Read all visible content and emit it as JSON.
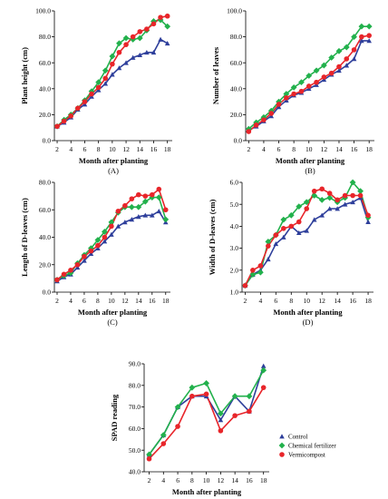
{
  "colors": {
    "control": "#2e3f9b",
    "chemical": "#22b14c",
    "vermicompost": "#e8252a"
  },
  "legend": {
    "items": [
      {
        "key": "control",
        "label": "Control",
        "marker": "triangle"
      },
      {
        "key": "chemical",
        "label": "Chemical fertilizer",
        "marker": "diamond"
      },
      {
        "key": "vermicompost",
        "label": "Vermicompost",
        "marker": "circle"
      }
    ]
  },
  "chart_data": [
    {
      "id": "A",
      "type": "line",
      "panel_label": "(A)",
      "xlabel": "Month after planting",
      "ylabel": "Plant height (cm)",
      "x": [
        2,
        3,
        4,
        5,
        6,
        7,
        8,
        9,
        10,
        11,
        12,
        13,
        14,
        15,
        16,
        17,
        18
      ],
      "xticks": [
        "2",
        "4",
        "6",
        "8",
        "10",
        "12",
        "14",
        "16",
        "18"
      ],
      "ylim": [
        0,
        100
      ],
      "yticks": [
        "0.0",
        "20.0",
        "40.0",
        "60.0",
        "80.0",
        "100.0"
      ],
      "series": [
        {
          "key": "control",
          "name": "Control",
          "values": [
            11,
            14,
            18,
            24,
            28,
            34,
            39,
            44,
            51,
            56,
            60,
            64,
            66,
            68,
            68,
            78,
            75
          ]
        },
        {
          "key": "chemical",
          "name": "Chemical fertilizer",
          "values": [
            11,
            16,
            20,
            25,
            31,
            38,
            45,
            54,
            65,
            75,
            79,
            78,
            79,
            85,
            92,
            93,
            88
          ]
        },
        {
          "key": "vermicompost",
          "name": "Vermicompost",
          "values": [
            11,
            15,
            19,
            25,
            30,
            36,
            41,
            48,
            59,
            68,
            74,
            80,
            84,
            86,
            90,
            95,
            96
          ]
        }
      ]
    },
    {
      "id": "B",
      "type": "line",
      "panel_label": "(B)",
      "xlabel": "Month after planting",
      "ylabel": "Number of leaves",
      "x": [
        2,
        3,
        4,
        5,
        6,
        7,
        8,
        9,
        10,
        11,
        12,
        13,
        14,
        15,
        16,
        17,
        18
      ],
      "xticks": [
        "2",
        "4",
        "6",
        "8",
        "10",
        "12",
        "14",
        "16",
        "18"
      ],
      "ylim": [
        0,
        100
      ],
      "yticks": [
        "0.0",
        "20.0",
        "40.0",
        "60.0",
        "80.0",
        "100.0"
      ],
      "series": [
        {
          "key": "control",
          "name": "Control",
          "values": [
            8,
            11,
            15,
            19,
            26,
            31,
            35,
            37,
            40,
            43,
            47,
            51,
            54,
            58,
            63,
            77,
            77
          ]
        },
        {
          "key": "chemical",
          "name": "Chemical fertilizer",
          "values": [
            9,
            14,
            18,
            23,
            30,
            36,
            41,
            45,
            50,
            54,
            58,
            64,
            69,
            72,
            80,
            88,
            88
          ]
        },
        {
          "key": "vermicompost",
          "name": "Vermicompost",
          "values": [
            7,
            12,
            16,
            21,
            28,
            33,
            36,
            38,
            42,
            45,
            49,
            52,
            57,
            63,
            70,
            80,
            81
          ]
        }
      ]
    },
    {
      "id": "C",
      "type": "line",
      "panel_label": "(C)",
      "xlabel": "Month after planting",
      "ylabel": "Length of D-leaves (cm)",
      "x": [
        2,
        3,
        4,
        5,
        6,
        7,
        8,
        9,
        10,
        11,
        12,
        13,
        14,
        15,
        16,
        17,
        18
      ],
      "xticks": [
        "2",
        "4",
        "6",
        "8",
        "10",
        "12",
        "14",
        "16",
        "18"
      ],
      "ylim": [
        0,
        80
      ],
      "yticks": [
        "0.0",
        "20.0",
        "40.0",
        "60.0",
        "80.0"
      ],
      "series": [
        {
          "key": "control",
          "name": "Control",
          "values": [
            8,
            11,
            13,
            18,
            23,
            28,
            32,
            37,
            42,
            48,
            51,
            53,
            55,
            56,
            56,
            59,
            51
          ]
        },
        {
          "key": "chemical",
          "name": "Chemical fertilizer",
          "values": [
            9,
            12,
            14,
            21,
            27,
            32,
            38,
            44,
            51,
            58,
            62,
            62,
            62,
            66,
            69,
            69,
            53
          ]
        },
        {
          "key": "vermicompost",
          "name": "Vermicompost",
          "values": [
            9,
            13,
            16,
            20,
            26,
            30,
            34,
            40,
            48,
            59,
            63,
            68,
            71,
            70,
            71,
            75,
            60
          ]
        }
      ]
    },
    {
      "id": "D",
      "type": "line",
      "panel_label": "(D)",
      "xlabel": "Month after planting",
      "ylabel": "Width of D-leaves (cm)",
      "x": [
        2,
        3,
        4,
        5,
        6,
        7,
        8,
        9,
        10,
        11,
        12,
        13,
        14,
        15,
        16,
        17,
        18
      ],
      "xticks": [
        "2",
        "4",
        "6",
        "8",
        "10",
        "12",
        "14",
        "16",
        "18"
      ],
      "ylim": [
        1.0,
        6.0
      ],
      "yticks": [
        "1.0",
        "2.0",
        "3.0",
        "4.0",
        "5.0",
        "6.0"
      ],
      "series": [
        {
          "key": "control",
          "name": "Control",
          "values": [
            1.3,
            1.8,
            2.0,
            2.5,
            3.2,
            3.5,
            4.0,
            3.7,
            3.8,
            4.3,
            4.5,
            4.8,
            4.8,
            5.0,
            5.1,
            5.3,
            4.2
          ]
        },
        {
          "key": "chemical",
          "name": "Chemical fertilizer",
          "values": [
            1.3,
            1.8,
            1.9,
            3.3,
            3.6,
            4.3,
            4.5,
            4.9,
            5.1,
            5.4,
            5.2,
            5.3,
            5.1,
            5.3,
            6.0,
            5.6,
            4.4
          ]
        },
        {
          "key": "vermicompost",
          "name": "Vermicompost",
          "values": [
            1.3,
            2.0,
            2.2,
            3.1,
            3.6,
            3.9,
            4.0,
            4.2,
            4.8,
            5.6,
            5.7,
            5.5,
            5.2,
            5.4,
            5.4,
            5.4,
            4.5
          ]
        }
      ]
    },
    {
      "id": "E",
      "type": "line",
      "panel_label": "(E)",
      "xlabel": "Month after planting",
      "ylabel": "SPAD reading",
      "x": [
        2,
        4,
        6,
        8,
        10,
        12,
        14,
        16,
        18
      ],
      "xticks": [
        "2",
        "4",
        "6",
        "8",
        "10",
        "12",
        "14",
        "16",
        "18"
      ],
      "ylim": [
        40,
        90
      ],
      "yticks": [
        "40.0",
        "50.0",
        "60.0",
        "70.0",
        "80.0",
        "90.0"
      ],
      "series": [
        {
          "key": "control",
          "name": "Control",
          "values": [
            48,
            57,
            70,
            75,
            75,
            64,
            75,
            68,
            89
          ]
        },
        {
          "key": "chemical",
          "name": "Chemical fertilizer",
          "values": [
            48,
            57,
            70,
            79,
            81,
            67,
            75,
            75,
            87
          ]
        },
        {
          "key": "vermicompost",
          "name": "Vermicompost",
          "values": [
            46,
            53,
            61,
            75,
            76,
            59,
            66,
            68,
            79
          ]
        }
      ]
    }
  ]
}
